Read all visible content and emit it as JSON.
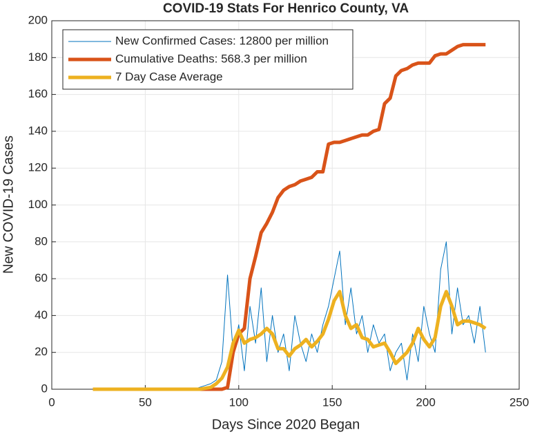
{
  "chart_data": {
    "type": "line",
    "title": "COVID-19 Stats For Henrico County, VA",
    "xlabel": "Days Since 2020 Began",
    "ylabel": "New COVID-19 Cases",
    "x": [
      22,
      25,
      28,
      31,
      34,
      37,
      40,
      43,
      46,
      49,
      52,
      55,
      58,
      61,
      64,
      67,
      70,
      73,
      76,
      79,
      82,
      85,
      88,
      91,
      94,
      97,
      100,
      103,
      106,
      109,
      112,
      115,
      118,
      121,
      124,
      127,
      130,
      133,
      136,
      139,
      142,
      145,
      148,
      151,
      154,
      157,
      160,
      163,
      166,
      169,
      172,
      175,
      178,
      181,
      184,
      187,
      190,
      193,
      196,
      199,
      202,
      205,
      208,
      211,
      214,
      217,
      220,
      223,
      226,
      229,
      232
    ],
    "series": [
      {
        "name": "New Confirmed Cases: 12800 per million",
        "color": "#0072BD",
        "values": [
          0,
          0,
          0,
          0,
          0,
          0,
          0,
          0,
          0,
          0,
          0,
          0,
          0,
          0,
          0,
          0,
          0,
          0,
          0,
          1,
          2,
          3,
          5,
          15,
          62,
          20,
          35,
          10,
          45,
          25,
          55,
          15,
          40,
          20,
          30,
          10,
          40,
          25,
          15,
          30,
          20,
          35,
          45,
          60,
          75,
          35,
          55,
          30,
          40,
          20,
          35,
          25,
          30,
          10,
          20,
          25,
          5,
          30,
          15,
          45,
          30,
          20,
          65,
          80,
          30,
          55,
          35,
          40,
          25,
          45,
          20
        ]
      },
      {
        "name": "Cumulative Deaths: 568.3 per million",
        "color": "#D95319",
        "values": [
          0,
          0,
          0,
          0,
          0,
          0,
          0,
          0,
          0,
          0,
          0,
          0,
          0,
          0,
          0,
          0,
          0,
          0,
          0,
          0,
          0,
          0,
          0,
          0,
          1,
          20,
          30,
          33,
          60,
          72,
          85,
          90,
          96,
          104,
          108,
          110,
          111,
          113,
          114,
          115,
          118,
          118,
          133,
          134,
          134,
          135,
          136,
          137,
          138,
          138,
          140,
          141,
          155,
          158,
          170,
          173,
          174,
          176,
          177,
          177,
          177,
          181,
          182,
          182,
          184,
          186,
          187,
          187,
          187,
          187,
          187
        ]
      },
      {
        "name": "7 Day Case Average",
        "color": "#EDB120",
        "values": [
          0,
          0,
          0,
          0,
          0,
          0,
          0,
          0,
          0,
          0,
          0,
          0,
          0,
          0,
          0,
          0,
          0,
          0,
          0,
          0,
          0.5,
          1,
          3,
          6,
          12,
          25,
          32,
          25,
          27,
          28,
          30,
          33,
          30,
          22,
          22,
          18,
          22,
          24,
          27,
          23,
          26,
          30,
          38,
          48,
          53,
          40,
          33,
          35,
          28,
          27,
          23,
          24,
          25,
          20,
          14,
          17,
          20,
          25,
          33,
          27,
          23,
          28,
          45,
          53,
          45,
          35,
          37,
          37,
          36,
          35,
          33
        ]
      }
    ],
    "xlim": [
      0,
      250
    ],
    "xticks": [
      0,
      50,
      100,
      150,
      200,
      250
    ],
    "ylim": [
      0,
      200
    ],
    "yticks": [
      0,
      20,
      40,
      60,
      80,
      100,
      120,
      140,
      160,
      180,
      200
    ],
    "grid": true,
    "legend": "northwest"
  }
}
